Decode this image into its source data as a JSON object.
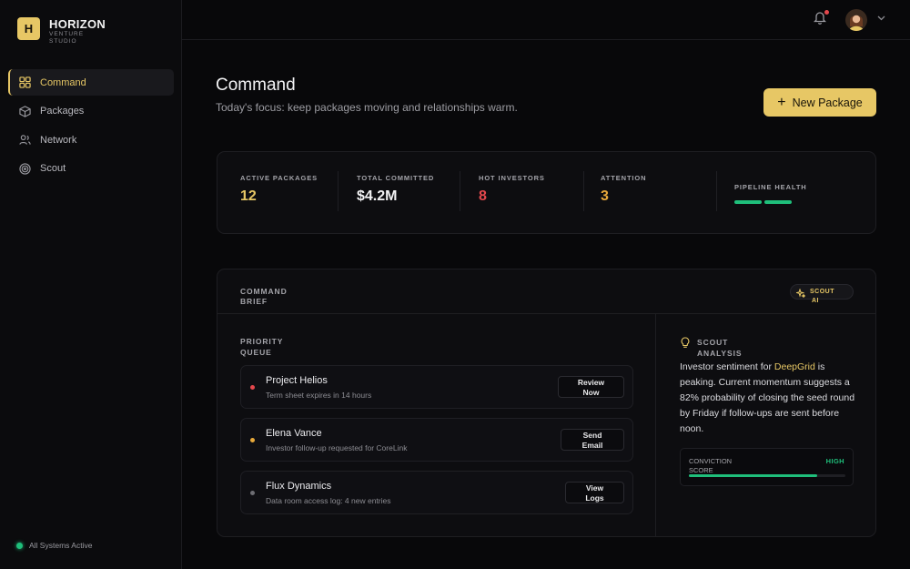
{
  "brand": {
    "initial": "H",
    "name": "HORIZON",
    "sub1": "VENTURE",
    "sub2": "STUDIO"
  },
  "sidebar": {
    "items": [
      {
        "label": "Command",
        "icon": "grid-icon",
        "active": true
      },
      {
        "label": "Packages",
        "icon": "box-icon",
        "active": false
      },
      {
        "label": "Network",
        "icon": "users-icon",
        "active": false
      },
      {
        "label": "Scout",
        "icon": "radar-icon",
        "active": false
      }
    ],
    "status": "All Systems Active"
  },
  "header": {
    "title": "Command",
    "subtitle": "Today's focus: keep packages moving and relationships warm.",
    "new_button": "New Package"
  },
  "stats": [
    {
      "label": "ACTIVE PACKAGES",
      "value": "12",
      "color": "#e7c765"
    },
    {
      "label": "TOTAL COMMITTED",
      "value": "$4.2M",
      "color": "#f3f3f5"
    },
    {
      "label": "HOT INVESTORS",
      "value": "8",
      "color": "#e5484d"
    },
    {
      "label": "ATTENTION",
      "value": "3",
      "color": "#e8a93b"
    },
    {
      "label": "PIPELINE HEALTH",
      "bars": 2,
      "color": "#1fbf7b"
    }
  ],
  "brief": {
    "title_line1": "COMMAND",
    "title_line2": "BRIEF",
    "scout_pill_line1": "SCOUT",
    "scout_pill_line2": "AI",
    "queue_title_line1": "PRIORITY",
    "queue_title_line2": "QUEUE",
    "queue": [
      {
        "name": "Project Helios",
        "desc": "Term sheet expires in 14 hours",
        "action_line1": "Review",
        "action_line2": "Now",
        "dot_color": "#e5484d"
      },
      {
        "name": "Elena Vance",
        "desc": "Investor follow-up requested for CoreLink",
        "action_line1": "Send",
        "action_line2": "Email",
        "dot_color": "#e8a93b"
      },
      {
        "name": "Flux Dynamics",
        "desc": "Data room access log: 4 new entries",
        "action_line1": "View",
        "action_line2": "Logs",
        "dot_color": "#6d6d73"
      }
    ],
    "analysis": {
      "title_line1": "SCOUT",
      "title_line2": "ANALYSIS",
      "text_before": "Investor sentiment for ",
      "highlight": "DeepGrid",
      "text_after": " is peaking. Current momentum suggests a 82% probability of closing the seed round by Friday if follow-ups are sent before noon.",
      "conviction_label1": "CONVICTION",
      "conviction_label2": "SCORE",
      "conviction_level": "HIGH",
      "conviction_fraction": 0.82
    }
  }
}
